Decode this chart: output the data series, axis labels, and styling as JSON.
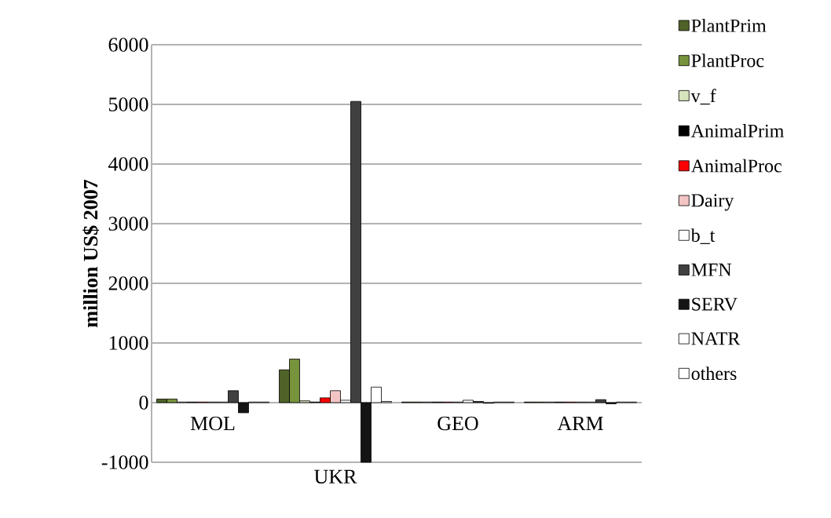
{
  "chart_data": {
    "type": "bar",
    "ylabel": "million US$ 2007",
    "categories": [
      "MOL",
      "UKR",
      "GEO",
      "ARM"
    ],
    "series": [
      {
        "name": "PlantPrim",
        "color": "#4f6228",
        "values": [
          60,
          550,
          10,
          10
        ]
      },
      {
        "name": "PlantProc",
        "color": "#77933c",
        "values": [
          60,
          730,
          10,
          10
        ]
      },
      {
        "name": "v_f",
        "color": "#d7e4bd",
        "values": [
          10,
          30,
          10,
          10
        ]
      },
      {
        "name": "AnimalPrim",
        "color": "#000000",
        "values": [
          10,
          10,
          10,
          10
        ]
      },
      {
        "name": "AnimalProc",
        "color": "#ff0000",
        "values": [
          10,
          80,
          10,
          10
        ]
      },
      {
        "name": "Dairy",
        "color": "#f2c4c4",
        "values": [
          10,
          200,
          10,
          10
        ]
      },
      {
        "name": "b_t",
        "color": "#ffffff",
        "values": [
          10,
          40,
          40,
          10
        ]
      },
      {
        "name": "MFN",
        "color": "#404040",
        "values": [
          200,
          5050,
          20,
          50
        ]
      },
      {
        "name": "SERV",
        "color": "#141414",
        "values": [
          -170,
          -1000,
          -10,
          -20
        ]
      },
      {
        "name": "NATR",
        "color": "#ffffff",
        "values": [
          10,
          260,
          10,
          10
        ]
      },
      {
        "name": "others",
        "color": "#ffffff",
        "values": [
          10,
          20,
          10,
          10
        ]
      }
    ],
    "ylim": [
      -1000,
      6000
    ],
    "yticks": [
      -1000,
      0,
      1000,
      2000,
      3000,
      4000,
      5000,
      6000
    ],
    "grid": "y",
    "legend": "right"
  }
}
